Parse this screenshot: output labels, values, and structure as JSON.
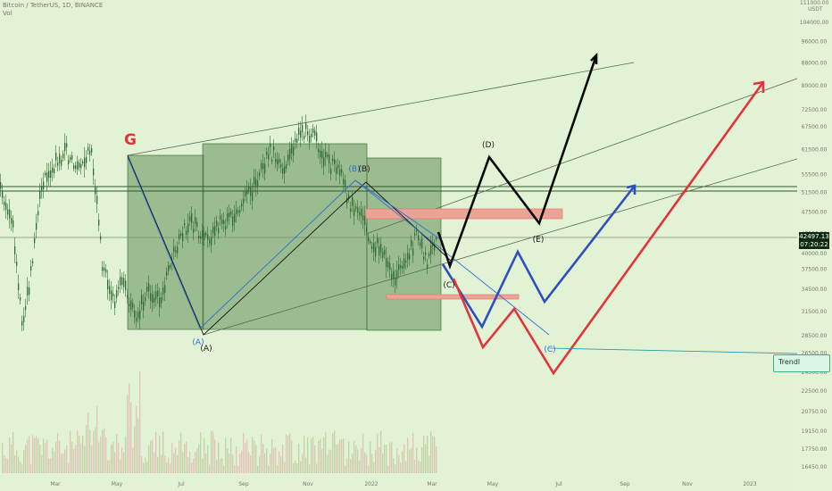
{
  "header": {
    "symbol": "Bitcoin / TetherUS, 1D, BINANCE",
    "indicator": "Vol"
  },
  "price_badge": {
    "price": "42497.13",
    "countdown": "07:20:22"
  },
  "trendline_label": "Trendl",
  "currency": "USDT",
  "top_tick": "111000.00",
  "colors": {
    "background": "#e2f2d4",
    "candle": "#2f6b35",
    "box_fill": "#5e8f55",
    "blue": "#2f4fbf",
    "red": "#e4333d",
    "black": "#0a0a0a",
    "resistance": "#e97a6e"
  },
  "chart_data": {
    "type": "candlestick",
    "title": "Bitcoin / TetherUS, 1D, BINANCE",
    "y_axis": {
      "scale": "log",
      "ticks": [
        "104000.00",
        "96000.00",
        "88000.00",
        "80000.00",
        "72500.00",
        "67500.00",
        "61500.00",
        "55500.00",
        "51500.00",
        "47500.00",
        "43500.00",
        "40000.00",
        "37500.00",
        "34500.00",
        "31500.00",
        "28500.00",
        "26500.00",
        "24500.00",
        "22500.00",
        "20750.00",
        "19150.00",
        "17750.00",
        "16450.00"
      ]
    },
    "x_axis": {
      "ticks": [
        "Mar",
        "May",
        "Jul",
        "Sep",
        "Nov",
        "2022",
        "Mar",
        "May",
        "Jul",
        "Sep",
        "Nov",
        "2023"
      ]
    },
    "price_path": [
      {
        "t": 0,
        "v": 52000
      },
      {
        "t": 1.5,
        "v": 47000
      },
      {
        "t": 3,
        "v": 30000
      },
      {
        "t": 4,
        "v": 35000
      },
      {
        "t": 5.5,
        "v": 53000
      },
      {
        "t": 7.5,
        "v": 58000
      },
      {
        "t": 9,
        "v": 61000
      },
      {
        "t": 10.5,
        "v": 56000
      },
      {
        "t": 12.5,
        "v": 62000
      },
      {
        "t": 14,
        "v": 38000
      },
      {
        "t": 15.5,
        "v": 33000
      },
      {
        "t": 17,
        "v": 36000
      },
      {
        "t": 18.5,
        "v": 30000
      },
      {
        "t": 20,
        "v": 34000
      },
      {
        "t": 22,
        "v": 33000
      },
      {
        "t": 24,
        "v": 41000
      },
      {
        "t": 26,
        "v": 46000
      },
      {
        "t": 28,
        "v": 42000
      },
      {
        "t": 30,
        "v": 45000
      },
      {
        "t": 32,
        "v": 47000
      },
      {
        "t": 34.5,
        "v": 52000
      },
      {
        "t": 37,
        "v": 61000
      },
      {
        "t": 39,
        "v": 57000
      },
      {
        "t": 40.5,
        "v": 64000
      },
      {
        "t": 42,
        "v": 67000
      },
      {
        "t": 43.5,
        "v": 63000
      },
      {
        "t": 45,
        "v": 58000
      },
      {
        "t": 46.5,
        "v": 56000
      },
      {
        "t": 48,
        "v": 49000
      },
      {
        "t": 49.5,
        "v": 47000
      },
      {
        "t": 51,
        "v": 42000
      },
      {
        "t": 52.5,
        "v": 40000
      },
      {
        "t": 54,
        "v": 36000
      },
      {
        "t": 55.5,
        "v": 38000
      },
      {
        "t": 57,
        "v": 43000
      },
      {
        "t": 58.5,
        "v": 38500
      },
      {
        "t": 60,
        "v": 42500
      }
    ],
    "wave_labels": [
      "G",
      "(A)",
      "(A)",
      "(B)",
      "(B)",
      "(C)",
      "(D)",
      "(E)",
      "(C)"
    ],
    "horizontal_levels": [
      52500,
      42497.13
    ],
    "annotations": [
      "Elliott wave projection scenarios: black (bullish), blue (corrective), red (bearish)"
    ]
  }
}
